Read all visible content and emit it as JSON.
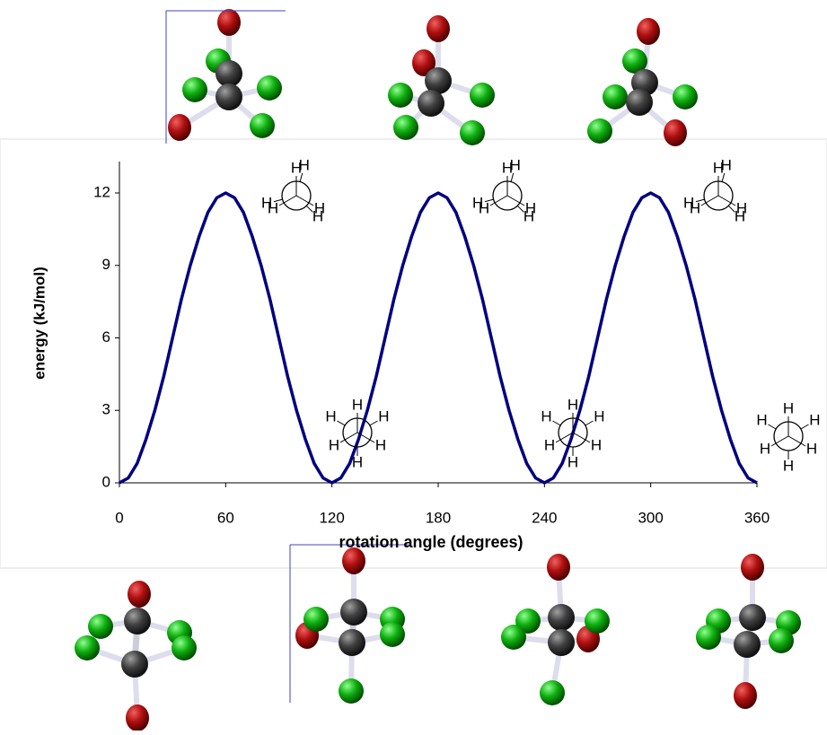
{
  "chart_data": {
    "type": "line",
    "xlabel": "rotation angle (degrees)",
    "ylabel": "energy (kJ/mol)",
    "x": [
      0,
      5,
      10,
      15,
      20,
      25,
      30,
      35,
      40,
      45,
      50,
      55,
      60,
      65,
      70,
      75,
      80,
      85,
      90,
      95,
      100,
      105,
      110,
      115,
      120,
      125,
      130,
      135,
      140,
      145,
      150,
      155,
      160,
      165,
      170,
      175,
      180,
      185,
      190,
      195,
      200,
      205,
      210,
      215,
      220,
      225,
      230,
      235,
      240,
      245,
      250,
      255,
      260,
      265,
      270,
      275,
      280,
      285,
      290,
      295,
      300,
      305,
      310,
      315,
      320,
      325,
      330,
      335,
      340,
      345,
      350,
      355,
      360
    ],
    "series": [
      {
        "color": "#000080",
        "values": [
          0,
          0.2,
          0.8,
          1.8,
          3,
          4.4,
          6,
          7.6,
          9,
          10.2,
          11.2,
          11.8,
          12,
          11.8,
          11.2,
          10.2,
          9,
          7.6,
          6,
          4.4,
          3,
          1.8,
          0.8,
          0.2,
          0,
          0.2,
          0.8,
          1.8,
          3,
          4.4,
          6,
          7.6,
          9,
          10.2,
          11.2,
          11.8,
          12,
          11.8,
          11.2,
          10.2,
          9,
          7.6,
          6,
          4.4,
          3,
          1.8,
          0.8,
          0.2,
          0,
          0.2,
          0.8,
          1.8,
          3,
          4.4,
          6,
          7.6,
          9,
          10.2,
          11.2,
          11.8,
          12,
          11.8,
          11.2,
          10.2,
          9,
          7.6,
          6,
          4.4,
          3,
          1.8,
          0.8,
          0.2,
          0
        ]
      }
    ],
    "xlim": [
      0,
      360
    ],
    "xticks": [
      0,
      60,
      120,
      180,
      240,
      300,
      360
    ],
    "ylim": [
      0,
      13.3
    ],
    "yticks": [
      0,
      3,
      6,
      9,
      12
    ],
    "atom_label": "H"
  }
}
